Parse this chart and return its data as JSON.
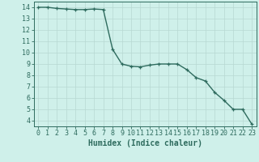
{
  "x": [
    0,
    1,
    2,
    3,
    4,
    5,
    6,
    7,
    8,
    9,
    10,
    11,
    12,
    13,
    14,
    15,
    16,
    17,
    18,
    19,
    20,
    21,
    22,
    23
  ],
  "y": [
    14.0,
    14.0,
    13.9,
    13.85,
    13.8,
    13.8,
    13.85,
    13.8,
    10.3,
    9.0,
    8.8,
    8.75,
    8.9,
    9.0,
    9.0,
    9.0,
    8.5,
    7.8,
    7.5,
    6.5,
    5.8,
    5.0,
    5.0,
    3.7
  ],
  "line_color": "#2e6b5e",
  "marker": "+",
  "marker_size": 3,
  "background_color": "#cff0ea",
  "grid_color": "#b8d8d2",
  "xlabel": "Humidex (Indice chaleur)",
  "xlabel_fontsize": 7,
  "ylabel_ticks": [
    4,
    5,
    6,
    7,
    8,
    9,
    10,
    11,
    12,
    13,
    14
  ],
  "xlim": [
    -0.5,
    23.5
  ],
  "ylim": [
    3.5,
    14.5
  ],
  "tick_fontsize": 6,
  "line_width": 1.0
}
